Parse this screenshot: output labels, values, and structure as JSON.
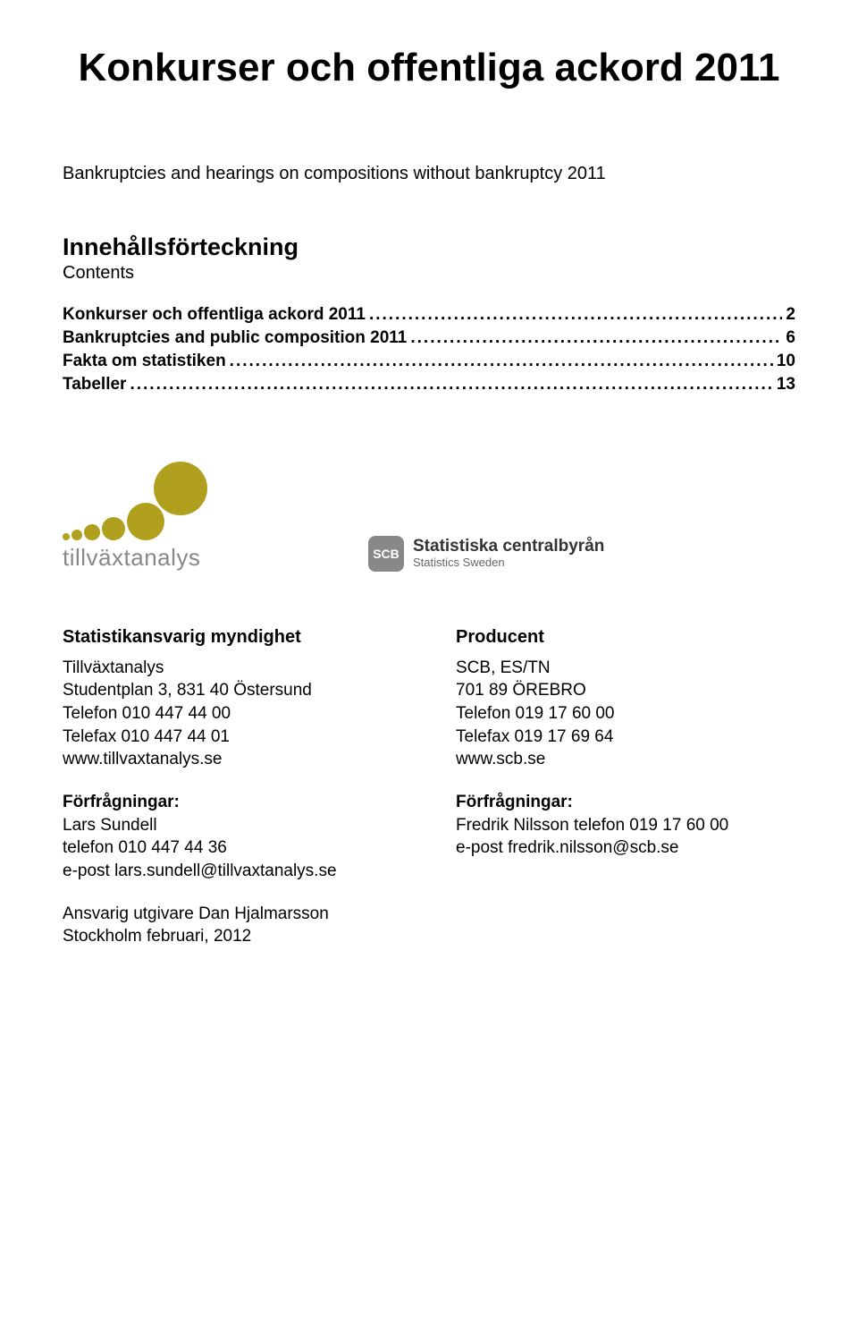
{
  "title": "Konkurser och offentliga ackord 2011",
  "subtitle_sv": "Bankruptcies and hearings on compositions without bankruptcy 2011",
  "toc": {
    "heading": "Innehållsförteckning",
    "subheading": "Contents",
    "items": [
      {
        "label": "Konkurser och offentliga ackord 2011",
        "page": "2"
      },
      {
        "label": "Bankruptcies and public composition 2011",
        "page": "6"
      },
      {
        "label": "Fakta om statistiken",
        "page": "10"
      },
      {
        "label": "Tabeller",
        "page": "13"
      }
    ]
  },
  "logos": {
    "tillvax": {
      "text": "tillväxtanalys",
      "circle_color": "#b0a01e",
      "text_color": "#888888"
    },
    "scb": {
      "badge": "SCB",
      "line1": "Statistiska centralbyrån",
      "line2": "Statistics Sweden",
      "badge_bg": "#888888"
    }
  },
  "info": {
    "left": {
      "heading": "Statistikansvarig myndighet",
      "block1": [
        "Tillväxtanalys",
        "Studentplan 3, 831 40 Östersund",
        "Telefon 010 447 44 00",
        "Telefax 010 447 44 01",
        "www.tillvaxtanalys.se"
      ],
      "block2_heading": "Förfrågningar:",
      "block2": [
        "Lars Sundell",
        "telefon 010 447 44 36",
        "e-post lars.sundell@tillvaxtanalys.se"
      ]
    },
    "right": {
      "heading": "Producent",
      "block1": [
        "SCB, ES/TN",
        "701 89 ÖREBRO",
        "Telefon 019 17 60 00",
        "Telefax  019 17 69 64",
        "www.scb.se"
      ],
      "block2_heading": "Förfrågningar:",
      "block2": [
        "Fredrik Nilsson telefon 019 17 60 00",
        "e-post fredrik.nilsson@scb.se"
      ]
    }
  },
  "footer": [
    "Ansvarig utgivare Dan Hjalmarsson",
    "Stockholm februari, 2012"
  ]
}
